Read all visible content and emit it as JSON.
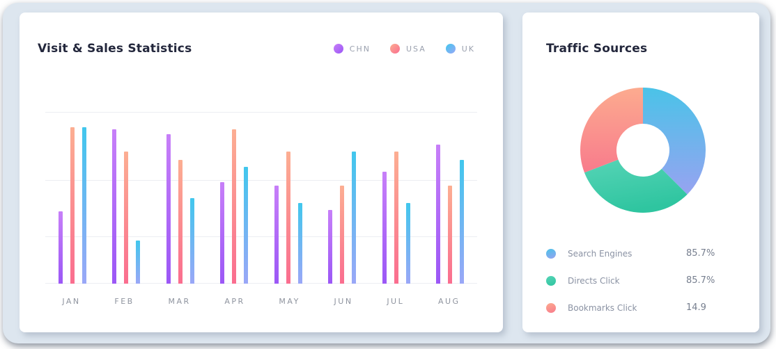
{
  "colors": {
    "frame_bg": "#dde6ef",
    "card_bg": "#ffffff",
    "title_color": "#23273c",
    "muted_text": "#9aa0ae",
    "grid_color": "#ecedf2",
    "chn_top": "#c77ff8",
    "chn_bottom": "#9b57f6",
    "usa_top": "#fcae92",
    "usa_bottom": "#fa6d8f",
    "uk_top": "#41c7ed",
    "uk_bottom": "#9aa7f7",
    "donut_blue_top": "#4ac3e8",
    "donut_blue_bottom": "#97a3f1",
    "donut_green_top": "#56d4b6",
    "donut_green_bottom": "#2fc5a0",
    "donut_salmon_top": "#fcab8f",
    "donut_salmon_bottom": "#f87b8c"
  },
  "left_card": {
    "title": "Visit & Sales Statistics",
    "legend": [
      {
        "id": "chn",
        "label": "CHN"
      },
      {
        "id": "usa",
        "label": "USA"
      },
      {
        "id": "uk",
        "label": "UK"
      }
    ]
  },
  "right_card": {
    "title": "Traffic Sources",
    "legend": [
      {
        "id": "blue",
        "label": "Search Engines",
        "value": "85.7%"
      },
      {
        "id": "green",
        "label": "Directs Click",
        "value": "85.7%"
      },
      {
        "id": "salmon",
        "label": "Bookmarks Click",
        "value": "14.9"
      }
    ]
  },
  "chart_data": [
    {
      "type": "bar",
      "title": "Visit & Sales Statistics",
      "categories": [
        "JAN",
        "FEB",
        "MAR",
        "APR",
        "MAY",
        "JUN",
        "JUL",
        "AUG"
      ],
      "series": [
        {
          "name": "CHN",
          "values": [
            42,
            90,
            87,
            59,
            57,
            43,
            65,
            81
          ]
        },
        {
          "name": "USA",
          "values": [
            91,
            77,
            72,
            90,
            77,
            57,
            77,
            57
          ]
        },
        {
          "name": "UK",
          "values": [
            91,
            25,
            50,
            68,
            47,
            77,
            47,
            72
          ]
        }
      ],
      "xlabel": "",
      "ylabel": "",
      "ylim": [
        0,
        100
      ],
      "note": "no numeric axis shown; values estimated as percent of top gridline",
      "grid": true,
      "legend_position": "top-right"
    },
    {
      "type": "pie",
      "title": "Traffic Sources",
      "donut": true,
      "labels": [
        "Search Engines",
        "Directs Click",
        "Bookmarks Click"
      ],
      "displayed_values": [
        "85.7%",
        "85.7%",
        "14.9"
      ],
      "segment_ids": [
        "blue",
        "green",
        "salmon"
      ],
      "segment_angles_deg": [
        135,
        114,
        111
      ],
      "segment_share_pct": [
        37.5,
        31.7,
        30.8
      ],
      "legend_position": "bottom"
    }
  ]
}
